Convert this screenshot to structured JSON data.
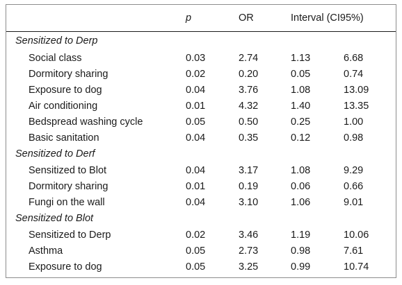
{
  "table": {
    "headers": {
      "variable": "",
      "p": "p",
      "or": "OR",
      "interval": "Interval (CI95%)"
    },
    "groups": [
      {
        "title": "Sensitized to Derp",
        "rows": [
          {
            "variable": "Social class",
            "p": "0.03",
            "or": "2.74",
            "lower": "1.13",
            "upper": "6.68"
          },
          {
            "variable": "Dormitory sharing",
            "p": "0.02",
            "or": "0.20",
            "lower": "0.05",
            "upper": "0.74"
          },
          {
            "variable": "Exposure to dog",
            "p": "0.04",
            "or": "3.76",
            "lower": "1.08",
            "upper": "13.09"
          },
          {
            "variable": "Air conditioning",
            "p": "0.01",
            "or": "4.32",
            "lower": "1.40",
            "upper": "13.35"
          },
          {
            "variable": "Bedspread washing cycle",
            "p": "0.05",
            "or": "0.50",
            "lower": "0.25",
            "upper": "1.00"
          },
          {
            "variable": "Basic sanitation",
            "p": "0.04",
            "or": "0.35",
            "lower": "0.12",
            "upper": "0.98"
          }
        ]
      },
      {
        "title": "Sensitized to Derf",
        "rows": [
          {
            "variable": "Sensitized to Blot",
            "p": "0.04",
            "or": "3.17",
            "lower": "1.08",
            "upper": "9.29"
          },
          {
            "variable": "Dormitory sharing",
            "p": "0.01",
            "or": "0.19",
            "lower": "0.06",
            "upper": "0.66"
          },
          {
            "variable": "Fungi on the wall",
            "p": "0.04",
            "or": "3.10",
            "lower": "1.06",
            "upper": "9.01"
          }
        ]
      },
      {
        "title": "Sensitized to Blot",
        "rows": [
          {
            "variable": "Sensitized to Derp",
            "p": "0.02",
            "or": "3.46",
            "lower": "1.19",
            "upper": "10.06"
          },
          {
            "variable": "Asthma",
            "p": "0.05",
            "or": "2.73",
            "lower": "0.98",
            "upper": "7.61"
          },
          {
            "variable": "Exposure to dog",
            "p": "0.05",
            "or": "3.25",
            "lower": "0.99",
            "upper": "10.74"
          }
        ]
      }
    ]
  }
}
